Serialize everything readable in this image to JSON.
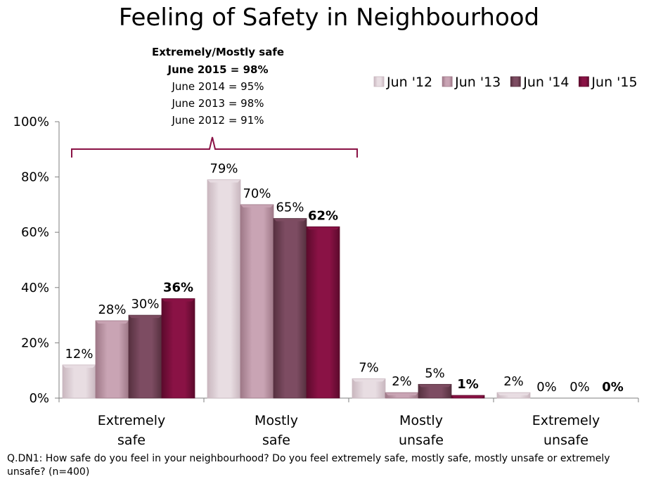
{
  "chart_data": {
    "type": "bar",
    "title": "Feeling of Safety in Neighbourhood",
    "categories": [
      [
        "Extremely",
        "safe"
      ],
      [
        "Mostly",
        "safe"
      ],
      [
        "Mostly",
        "unsafe"
      ],
      [
        "Extremely",
        "unsafe"
      ]
    ],
    "series": [
      {
        "name": "Jun '12",
        "values": [
          12,
          79,
          7,
          2
        ],
        "labels": [
          "12%",
          "79%",
          "7%",
          "2%"
        ],
        "color": "#e8dde2",
        "color_dark": "#c9b7bf"
      },
      {
        "name": "Jun '13",
        "values": [
          28,
          70,
          2,
          0
        ],
        "labels": [
          "28%",
          "70%",
          "2%",
          "0%"
        ],
        "color": "#c9a4b4",
        "color_dark": "#9e7887"
      },
      {
        "name": "Jun '14",
        "values": [
          30,
          65,
          5,
          0
        ],
        "labels": [
          "30%",
          "65%",
          "5%",
          "0%"
        ],
        "color": "#7d4c62",
        "color_dark": "#56303f"
      },
      {
        "name": "Jun '15",
        "values": [
          36,
          62,
          1,
          0
        ],
        "labels": [
          "36%",
          "62%",
          "1%",
          "0%"
        ],
        "color": "#8a1245",
        "color_dark": "#5c0a2c",
        "bold": true
      }
    ],
    "y_ticks": [
      "0%",
      "20%",
      "40%",
      "60%",
      "80%",
      "100%"
    ],
    "ylim": [
      0,
      100
    ],
    "legend_position": "top-right",
    "grid": false,
    "annotation": {
      "heading": "Extremely/Mostly safe",
      "lines": [
        {
          "text": "June 2015 = 98%",
          "bold": true
        },
        {
          "text": "June 2014 = 95%",
          "bold": false
        },
        {
          "text": "June 2013 = 98%",
          "bold": false
        },
        {
          "text": "June 2012 = 91%",
          "bold": false
        }
      ],
      "bracket_color": "#8a1245"
    }
  },
  "footnote": [
    "Q.DN1: How safe do you feel in your neighbourhood? Do you feel extremely safe, mostly safe, mostly unsafe or extremely",
    "unsafe? (n=400)"
  ]
}
